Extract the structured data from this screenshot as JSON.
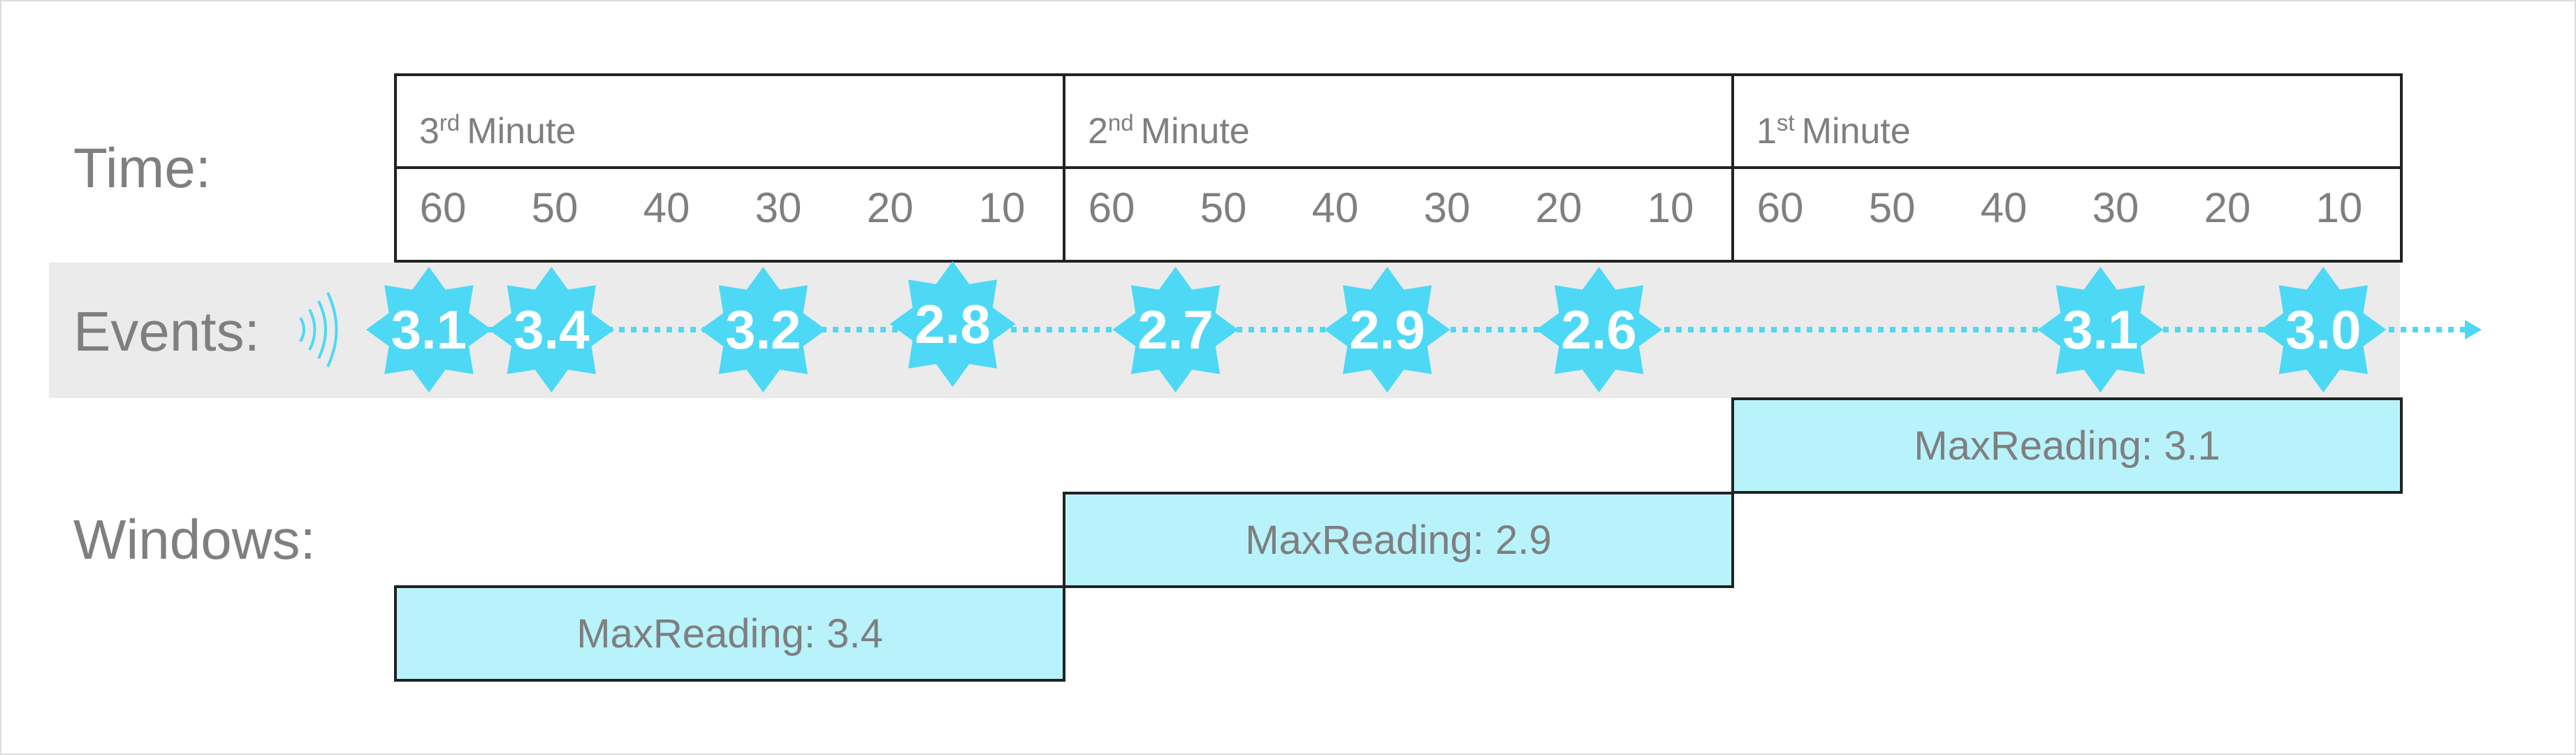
{
  "row_labels": {
    "time": "Time:",
    "events": "Events:",
    "windows": "Windows:"
  },
  "minutes": [
    {
      "number": "3",
      "suffix": "rd",
      "word": "Minute",
      "ticks": [
        "60",
        "50",
        "40",
        "30",
        "20",
        "10"
      ]
    },
    {
      "number": "2",
      "suffix": "nd",
      "word": "Minute",
      "ticks": [
        "60",
        "50",
        "40",
        "30",
        "20",
        "10"
      ]
    },
    {
      "number": "1",
      "suffix": "st",
      "word": "Minute",
      "ticks": [
        "60",
        "50",
        "40",
        "30",
        "20",
        "10"
      ]
    }
  ],
  "events": [
    {
      "value": "3.1",
      "seconds_elapsed": 3
    },
    {
      "value": "3.4",
      "seconds_elapsed": 14
    },
    {
      "value": "3.2",
      "seconds_elapsed": 33
    },
    {
      "value": "2.8",
      "seconds_elapsed": 50
    },
    {
      "value": "2.7",
      "seconds_elapsed": 70
    },
    {
      "value": "2.9",
      "seconds_elapsed": 89
    },
    {
      "value": "2.6",
      "seconds_elapsed": 108
    },
    {
      "value": "3.1",
      "seconds_elapsed": 153
    },
    {
      "value": "3.0",
      "seconds_elapsed": 173
    }
  ],
  "windows": [
    {
      "label": "MaxReading: 3.4",
      "minute_index": 0
    },
    {
      "label": "MaxReading: 2.9",
      "minute_index": 1
    },
    {
      "label": "MaxReading: 3.1",
      "minute_index": 2
    }
  ],
  "colors": {
    "event_fill": "#4dd9f5",
    "window_fill": "#b8f3fc",
    "band_fill": "#ebebeb",
    "text_gray": "#7f7f7f",
    "border": "#222222"
  },
  "icons": {
    "event_source": "signal-waves-icon",
    "event_marker": "star-burst-icon",
    "timeline_arrow": "arrow-right-icon"
  }
}
